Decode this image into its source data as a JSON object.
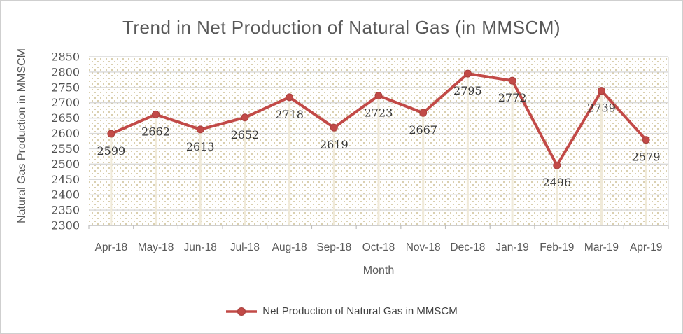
{
  "window": {
    "background": "#FFFFFF",
    "border_color": "#CFCFCF"
  },
  "chart_data": {
    "type": "line",
    "title": "Trend in Net Production of Natural Gas (in MMSCM)",
    "xlabel": "Month",
    "ylabel": "Natural Gas Production in MMSCM",
    "categories": [
      "Apr-18",
      "May-18",
      "Jun-18",
      "Jul-18",
      "Aug-18",
      "Sep-18",
      "Oct-18",
      "Nov-18",
      "Dec-18",
      "Jan-19",
      "Feb-19",
      "Mar-19",
      "Apr-19"
    ],
    "series": [
      {
        "name": "Net Production of Natural Gas in MMSCM",
        "values": [
          2599,
          2662,
          2613,
          2652,
          2718,
          2619,
          2723,
          2667,
          2795,
          2772,
          2496,
          2739,
          2579
        ]
      }
    ],
    "ylim": [
      2300,
      2850
    ],
    "ytick_step": 50,
    "yticks": [
      2300,
      2350,
      2400,
      2450,
      2500,
      2550,
      2600,
      2650,
      2700,
      2750,
      2800,
      2850
    ],
    "grid": "horizontal",
    "legend_position": "bottom",
    "data_label_position": "below",
    "marker": "circle"
  },
  "colors": {
    "line": "#C24A47",
    "marker_edge": "#A8403D",
    "gridline": "#D9D9D9",
    "axis": "#BFBFBF",
    "drop_line": "#F0EAD9",
    "pattern_dot": "#CDC096",
    "title_text": "#595959",
    "axis_title_text": "#595959",
    "y_tick_text": "#4F4F4F",
    "x_tick_text": "#595959",
    "data_label_text": "#363636",
    "legend_text": "#404040"
  }
}
